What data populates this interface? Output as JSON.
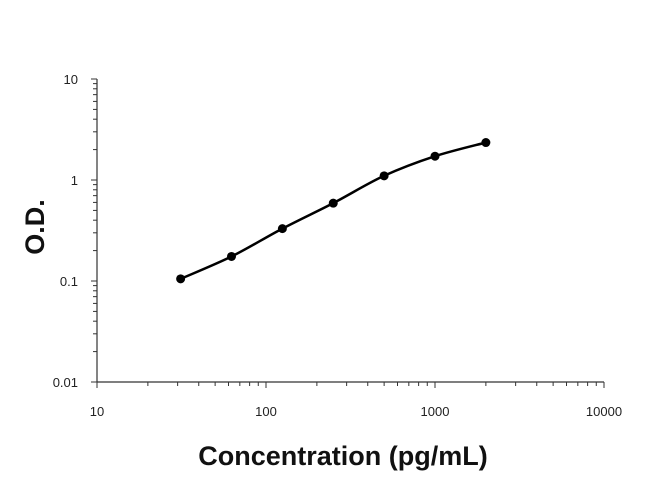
{
  "chart_data": {
    "type": "scatter",
    "title": "",
    "xlabel": "Concentration (pg/mL)",
    "ylabel": "O.D.",
    "xscale": "log",
    "yscale": "log",
    "xlim": [
      10,
      10000
    ],
    "ylim": [
      0.01,
      10
    ],
    "x_tick_labels": [
      "10",
      "100",
      "1000",
      "10000"
    ],
    "y_tick_labels": [
      "0.01",
      "0.1",
      "1",
      "10"
    ],
    "grid": false,
    "legend": "none",
    "series": [
      {
        "x": [
          31.25,
          62.5,
          125,
          250,
          500,
          1000,
          2000
        ],
        "y": [
          0.105,
          0.175,
          0.33,
          0.59,
          1.1,
          1.72,
          2.35
        ]
      }
    ],
    "fit_curve": "smooth",
    "colors": {
      "marker": "#000000",
      "line": "#000000",
      "axis": "#333333"
    }
  }
}
